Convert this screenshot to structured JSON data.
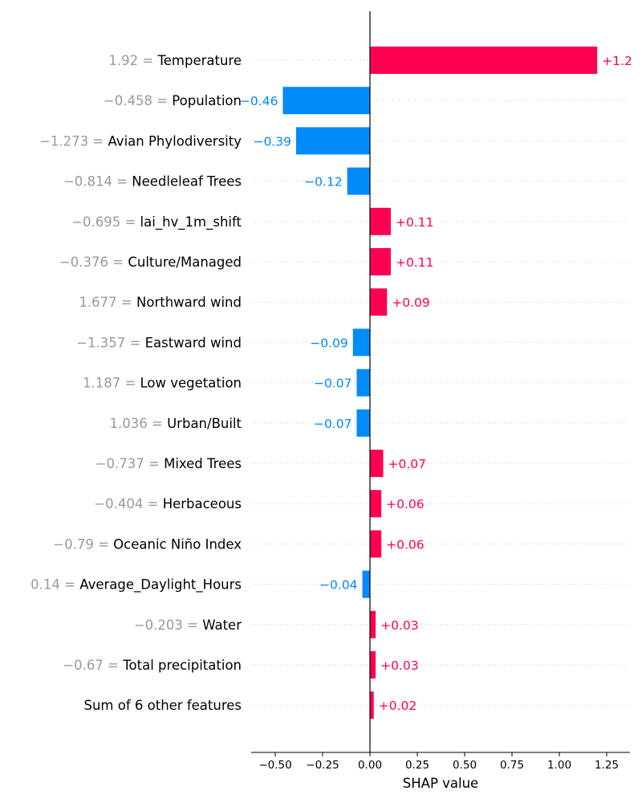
{
  "chart_data": {
    "type": "bar",
    "orientation": "horizontal",
    "xlabel": "SHAP value",
    "xlim": [
      -0.63,
      1.38
    ],
    "xticks": [
      -0.5,
      -0.25,
      0.0,
      0.25,
      0.5,
      0.75,
      1.0,
      1.25
    ],
    "xtick_labels": [
      "−0.50",
      "−0.25",
      "0.00",
      "0.25",
      "0.50",
      "0.75",
      "1.00",
      "1.25"
    ],
    "colors": {
      "positive": "#ff0051",
      "negative": "#008bfb",
      "feature_value": "#999999"
    },
    "features": [
      {
        "name": "Temperature",
        "feature_value": "1.92",
        "shap": 1.2,
        "label": "+1.2"
      },
      {
        "name": "Population",
        "feature_value": "−0.458",
        "shap": -0.46,
        "label": "−0.46"
      },
      {
        "name": "Avian Phylodiversity",
        "feature_value": "−1.273",
        "shap": -0.39,
        "label": "−0.39"
      },
      {
        "name": "Needleleaf Trees",
        "feature_value": "−0.814",
        "shap": -0.12,
        "label": "−0.12"
      },
      {
        "name": "lai_hv_1m_shift",
        "feature_value": "−0.695",
        "shap": 0.11,
        "label": "+0.11"
      },
      {
        "name": "Culture/Managed",
        "feature_value": "−0.376",
        "shap": 0.11,
        "label": "+0.11"
      },
      {
        "name": "Northward wind",
        "feature_value": "1.677",
        "shap": 0.09,
        "label": "+0.09"
      },
      {
        "name": "Eastward wind",
        "feature_value": "−1.357",
        "shap": -0.09,
        "label": "−0.09"
      },
      {
        "name": "Low vegetation",
        "feature_value": "1.187",
        "shap": -0.07,
        "label": "−0.07"
      },
      {
        "name": "Urban/Built",
        "feature_value": "1.036",
        "shap": -0.07,
        "label": "−0.07"
      },
      {
        "name": "Mixed Trees",
        "feature_value": "−0.737",
        "shap": 0.07,
        "label": "+0.07"
      },
      {
        "name": "Herbaceous",
        "feature_value": "−0.404",
        "shap": 0.06,
        "label": "+0.06"
      },
      {
        "name": "Oceanic Niño Index",
        "feature_value": "−0.79",
        "shap": 0.06,
        "label": "+0.06"
      },
      {
        "name": "Average_Daylight_Hours",
        "feature_value": "0.14",
        "shap": -0.04,
        "label": "−0.04"
      },
      {
        "name": "Water",
        "feature_value": "−0.203",
        "shap": 0.03,
        "label": "+0.03"
      },
      {
        "name": "Total precipitation",
        "feature_value": "−0.67",
        "shap": 0.03,
        "label": "+0.03"
      },
      {
        "name": "Sum of 6 other features",
        "feature_value": "",
        "shap": 0.02,
        "label": "+0.02"
      }
    ]
  }
}
